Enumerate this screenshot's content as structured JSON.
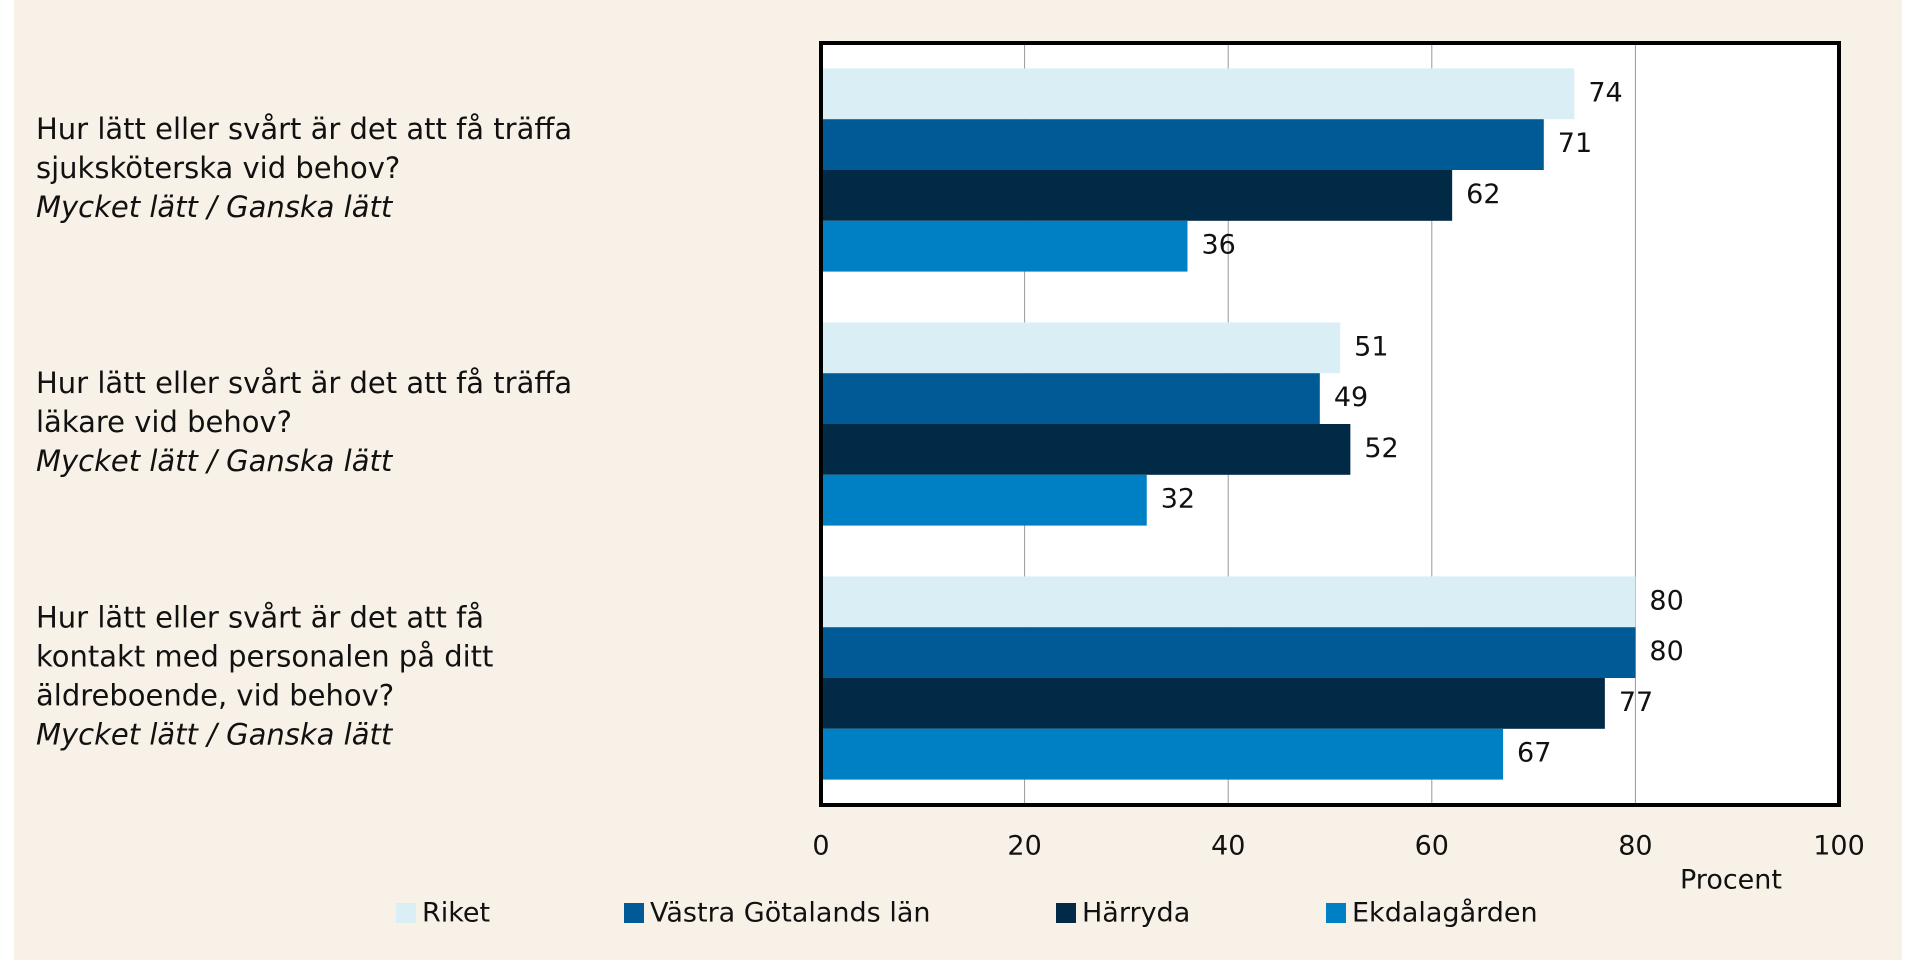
{
  "chart_data": {
    "type": "hbar",
    "categories": [
      {
        "lines": [
          "Hur lätt eller svårt är det att få träffa",
          "sjuksköterska vid behov?"
        ],
        "answer": "Mycket lätt / Ganska lätt"
      },
      {
        "lines": [
          "Hur lätt eller svårt är det att få träffa",
          "läkare vid behov?"
        ],
        "answer": "Mycket lätt / Ganska lätt"
      },
      {
        "lines": [
          "Hur lätt eller svårt är det att få",
          "kontakt med personalen på ditt",
          "äldreboende, vid behov?"
        ],
        "answer": "Mycket lätt / Ganska lätt"
      }
    ],
    "series": [
      {
        "name": "Riket",
        "color": "#d9eef5",
        "values": [
          74,
          51,
          80
        ]
      },
      {
        "name": "Västra Götalands län",
        "color": "#005a96",
        "values": [
          71,
          49,
          80
        ]
      },
      {
        "name": "Härryda",
        "color": "#002a45",
        "values": [
          62,
          52,
          77
        ]
      },
      {
        "name": "Ekdalagården",
        "color": "#0080c4",
        "values": [
          36,
          32,
          67
        ]
      }
    ],
    "xlim": [
      0,
      100
    ],
    "xticks": [
      0,
      20,
      40,
      60,
      80,
      100
    ],
    "xlabel": "Procent",
    "grid": true
  }
}
